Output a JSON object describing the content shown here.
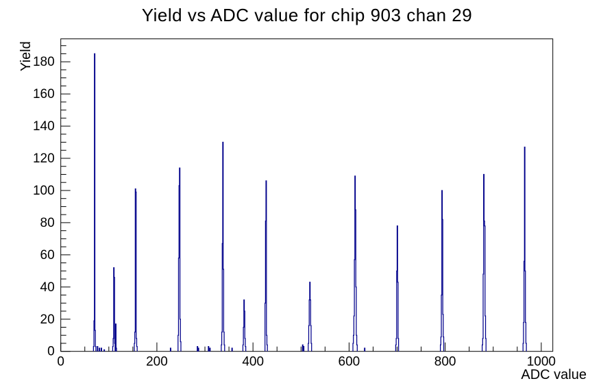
{
  "chart_data": {
    "type": "bar",
    "title": "Yield vs ADC value for chip 903 chan 29",
    "xlabel": "ADC value",
    "ylabel": "Yield",
    "xlim": [
      0,
      1024
    ],
    "ylim": [
      0,
      194.25
    ],
    "x_major_ticks": [
      0,
      200,
      400,
      600,
      800,
      1000
    ],
    "x_minor_step": 50,
    "y_major_ticks": [
      0,
      20,
      40,
      60,
      80,
      100,
      120,
      140,
      160,
      180
    ],
    "y_minor_step": 5,
    "grid": false,
    "legend": "none",
    "line_color": "#00008b",
    "frame_color": "#000000",
    "background_color": "#ffffff",
    "bin_width_adc": 1,
    "peak_summary": [
      {
        "adc": 70,
        "yield": 185
      },
      {
        "adc": 110,
        "yield": 52
      },
      {
        "adc": 155,
        "yield": 101
      },
      {
        "adc": 247,
        "yield": 114
      },
      {
        "adc": 337,
        "yield": 130
      },
      {
        "adc": 381,
        "yield": 32
      },
      {
        "adc": 427,
        "yield": 106
      },
      {
        "adc": 518,
        "yield": 43
      },
      {
        "adc": 612,
        "yield": 109
      },
      {
        "adc": 700,
        "yield": 78
      },
      {
        "adc": 793,
        "yield": 100
      },
      {
        "adc": 880,
        "yield": 110
      },
      {
        "adc": 965,
        "yield": 127
      }
    ],
    "bins": [
      [
        68,
        3
      ],
      [
        69,
        19
      ],
      [
        70,
        185
      ],
      [
        71,
        13
      ],
      [
        72,
        3
      ],
      [
        76,
        3
      ],
      [
        80,
        2
      ],
      [
        84,
        2
      ],
      [
        90,
        1
      ],
      [
        108,
        3
      ],
      [
        109,
        8
      ],
      [
        110,
        52
      ],
      [
        111,
        46
      ],
      [
        112,
        5
      ],
      [
        114,
        17
      ],
      [
        115,
        2
      ],
      [
        153,
        5
      ],
      [
        154,
        12
      ],
      [
        155,
        101
      ],
      [
        156,
        99
      ],
      [
        157,
        8
      ],
      [
        158,
        3
      ],
      [
        228,
        2
      ],
      [
        244,
        10
      ],
      [
        245,
        58
      ],
      [
        246,
        103
      ],
      [
        247,
        114
      ],
      [
        248,
        20
      ],
      [
        249,
        6
      ],
      [
        284,
        3
      ],
      [
        286,
        2
      ],
      [
        307,
        3
      ],
      [
        310,
        2
      ],
      [
        334,
        4
      ],
      [
        335,
        12
      ],
      [
        336,
        67
      ],
      [
        337,
        130
      ],
      [
        338,
        51
      ],
      [
        339,
        12
      ],
      [
        340,
        4
      ],
      [
        356,
        2
      ],
      [
        379,
        4
      ],
      [
        380,
        15
      ],
      [
        381,
        32
      ],
      [
        382,
        25
      ],
      [
        383,
        8
      ],
      [
        384,
        3
      ],
      [
        425,
        30
      ],
      [
        426,
        81
      ],
      [
        427,
        106
      ],
      [
        428,
        10
      ],
      [
        429,
        4
      ],
      [
        503,
        4
      ],
      [
        505,
        3
      ],
      [
        515,
        5
      ],
      [
        516,
        16
      ],
      [
        517,
        32
      ],
      [
        518,
        43
      ],
      [
        519,
        32
      ],
      [
        520,
        16
      ],
      [
        521,
        5
      ],
      [
        608,
        5
      ],
      [
        609,
        10
      ],
      [
        610,
        22
      ],
      [
        611,
        57
      ],
      [
        612,
        109
      ],
      [
        613,
        88
      ],
      [
        614,
        40
      ],
      [
        615,
        10
      ],
      [
        616,
        4
      ],
      [
        632,
        2
      ],
      [
        697,
        4
      ],
      [
        698,
        8
      ],
      [
        699,
        50
      ],
      [
        700,
        78
      ],
      [
        701,
        43
      ],
      [
        702,
        8
      ],
      [
        790,
        4
      ],
      [
        791,
        9
      ],
      [
        792,
        35
      ],
      [
        793,
        100
      ],
      [
        794,
        82
      ],
      [
        795,
        23
      ],
      [
        796,
        9
      ],
      [
        877,
        4
      ],
      [
        878,
        8
      ],
      [
        879,
        48
      ],
      [
        880,
        110
      ],
      [
        881,
        81
      ],
      [
        882,
        78
      ],
      [
        883,
        22
      ],
      [
        884,
        8
      ],
      [
        962,
        5
      ],
      [
        963,
        18
      ],
      [
        964,
        56
      ],
      [
        965,
        127
      ],
      [
        966,
        50
      ],
      [
        967,
        18
      ],
      [
        968,
        5
      ]
    ]
  }
}
